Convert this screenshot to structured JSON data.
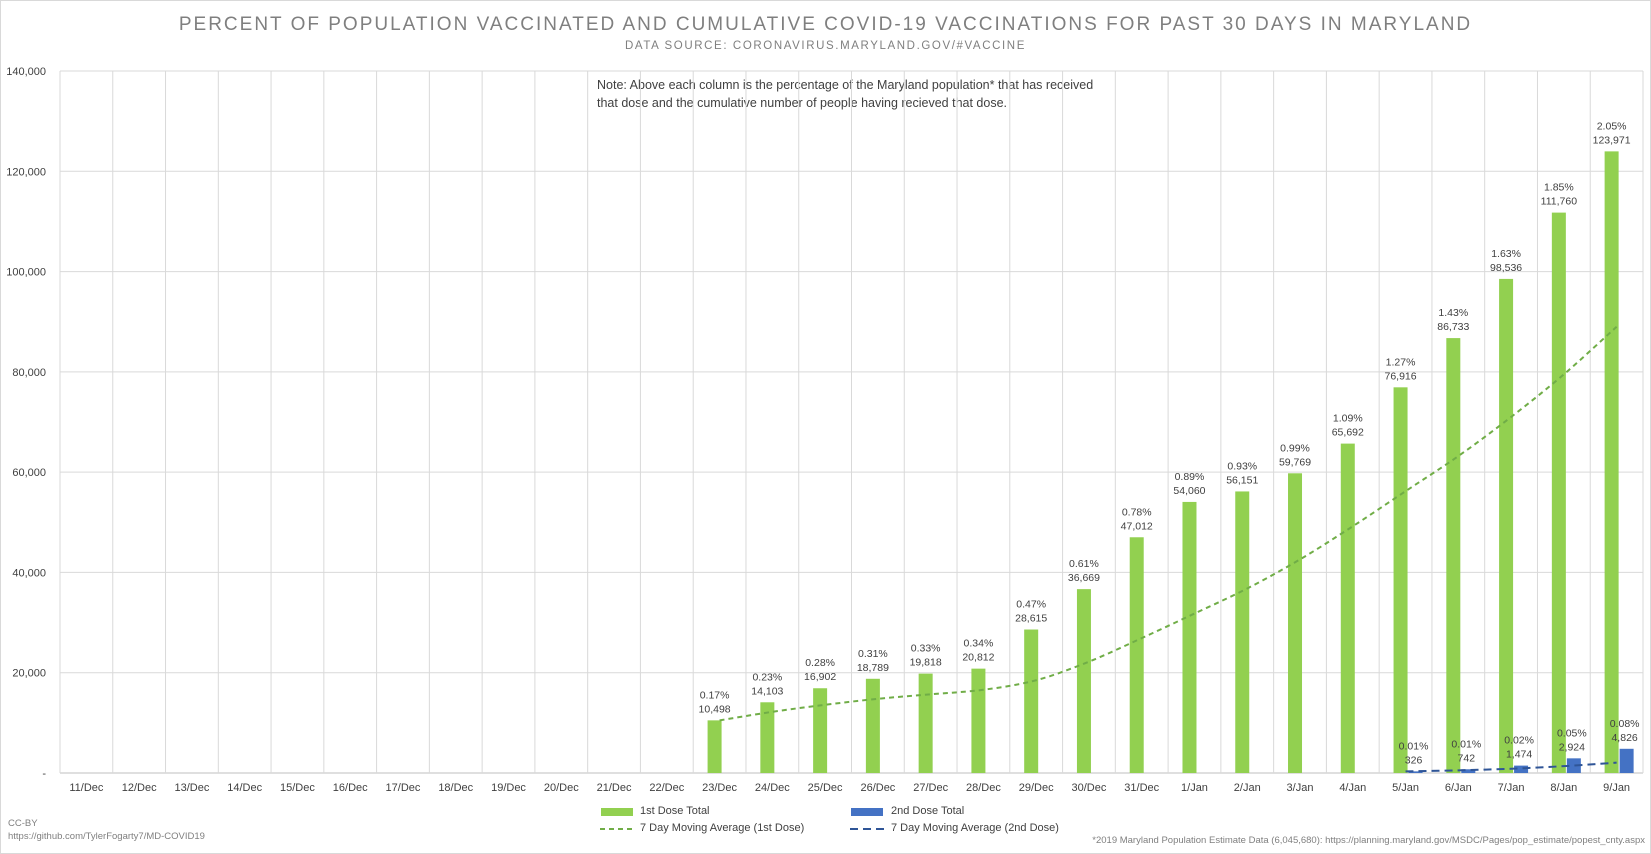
{
  "title": "PERCENT OF POPULATION VACCINATED AND CUMULATIVE COVID-19 VACCINATIONS FOR PAST 30 DAYS IN MARYLAND",
  "subtitle": "DATA SOURCE: CORONAVIRUS.MARYLAND.GOV/#VACCINE",
  "note": "Note: Above each column is the percentage of the Maryland population* that has received that dose and the cumulative number of people having recieved that dose.",
  "footer": {
    "license": "CC-BY",
    "repo": "https://github.com/TylerFogarty7/MD-COVID19",
    "population_source": "*2019 Maryland Population Estimate Data (6,045,680): https://planning.maryland.gov/MSDC/Pages/pop_estimate/popest_cnty.aspx"
  },
  "colors": {
    "dose1": "#92d050",
    "dose2": "#4472c4",
    "grid": "#d9d9d9",
    "text": "#404040"
  },
  "chart_data": {
    "type": "bar",
    "categories": [
      "11/Dec",
      "12/Dec",
      "13/Dec",
      "14/Dec",
      "15/Dec",
      "16/Dec",
      "17/Dec",
      "18/Dec",
      "19/Dec",
      "20/Dec",
      "21/Dec",
      "22/Dec",
      "23/Dec",
      "24/Dec",
      "25/Dec",
      "26/Dec",
      "27/Dec",
      "28/Dec",
      "29/Dec",
      "30/Dec",
      "31/Dec",
      "1/Jan",
      "2/Jan",
      "3/Jan",
      "4/Jan",
      "5/Jan",
      "6/Jan",
      "7/Jan",
      "8/Jan",
      "9/Jan"
    ],
    "ylim": [
      0,
      140000
    ],
    "yticks": [
      0,
      20000,
      40000,
      60000,
      80000,
      100000,
      120000,
      140000
    ],
    "ytick_labels": [
      "-",
      "20,000",
      "40,000",
      "60,000",
      "80,000",
      "100,000",
      "120,000",
      "140,000"
    ],
    "grid": true,
    "legend_position": "bottom",
    "series": [
      {
        "name": "1st Dose Total",
        "kind": "bar",
        "color": "#92d050",
        "values": [
          0,
          0,
          0,
          0,
          0,
          0,
          0,
          0,
          0,
          0,
          0,
          0,
          10498,
          14103,
          16902,
          18789,
          19818,
          20812,
          28615,
          36669,
          47012,
          54060,
          56151,
          59769,
          65692,
          76916,
          86733,
          98536,
          111760,
          123971
        ],
        "value_labels": [
          "",
          "",
          "",
          "",
          "",
          "",
          "",
          "",
          "",
          "",
          "",
          "",
          "10,498",
          "14,103",
          "16,902",
          "18,789",
          "19,818",
          "20,812",
          "28,615",
          "36,669",
          "47,012",
          "54,060",
          "56,151",
          "59,769",
          "65,692",
          "76,916",
          "86,733",
          "98,536",
          "111,760",
          "123,971"
        ],
        "percent_labels": [
          "",
          "",
          "",
          "",
          "",
          "",
          "",
          "",
          "",
          "",
          "",
          "",
          "0.17%",
          "0.23%",
          "0.28%",
          "0.31%",
          "0.33%",
          "0.34%",
          "0.47%",
          "0.61%",
          "0.78%",
          "0.89%",
          "0.93%",
          "0.99%",
          "1.09%",
          "1.27%",
          "1.43%",
          "1.63%",
          "1.85%",
          "2.05%"
        ]
      },
      {
        "name": "2nd Dose Total",
        "kind": "bar",
        "color": "#4472c4",
        "values": [
          0,
          0,
          0,
          0,
          0,
          0,
          0,
          0,
          0,
          0,
          0,
          0,
          0,
          0,
          0,
          0,
          0,
          0,
          0,
          0,
          0,
          0,
          0,
          0,
          0,
          326,
          742,
          1474,
          2924,
          4826
        ],
        "value_labels": [
          "",
          "",
          "",
          "",
          "",
          "",
          "",
          "",
          "",
          "",
          "",
          "",
          "",
          "",
          "",
          "",
          "",
          "",
          "",
          "",
          "",
          "",
          "",
          "",
          "",
          "326",
          "742",
          "1,474",
          "2,924",
          "4,826"
        ],
        "percent_labels": [
          "",
          "",
          "",
          "",
          "",
          "",
          "",
          "",
          "",
          "",
          "",
          "",
          "",
          "",
          "",
          "",
          "",
          "",
          "",
          "",
          "",
          "",
          "",
          "",
          "",
          "0.01%",
          "0.01%",
          "0.02%",
          "0.05%",
          "0.08%"
        ]
      },
      {
        "name": "7 Day Moving Average (1st Dose)",
        "kind": "line",
        "style": "dashed",
        "color": "#70ad47",
        "points": [
          {
            "x": "23/Dec",
            "y": 10500
          },
          {
            "x": "24/Dec",
            "y": 12200
          },
          {
            "x": "25/Dec",
            "y": 13600
          },
          {
            "x": "26/Dec",
            "y": 14800
          },
          {
            "x": "27/Dec",
            "y": 15700
          },
          {
            "x": "28/Dec",
            "y": 16600
          },
          {
            "x": "29/Dec",
            "y": 18500
          },
          {
            "x": "30/Dec",
            "y": 22200
          },
          {
            "x": "31/Dec",
            "y": 26900
          },
          {
            "x": "1/Jan",
            "y": 31800
          },
          {
            "x": "2/Jan",
            "y": 36800
          },
          {
            "x": "3/Jan",
            "y": 42600
          },
          {
            "x": "4/Jan",
            "y": 49200
          },
          {
            "x": "5/Jan",
            "y": 56200
          },
          {
            "x": "6/Jan",
            "y": 63200
          },
          {
            "x": "7/Jan",
            "y": 71000
          },
          {
            "x": "8/Jan",
            "y": 79500
          },
          {
            "x": "9/Jan",
            "y": 89000
          }
        ]
      },
      {
        "name": "7 Day Moving Average (2nd Dose)",
        "kind": "line",
        "style": "dashed",
        "color": "#2f5597",
        "points": [
          {
            "x": "5/Jan",
            "y": 326
          },
          {
            "x": "6/Jan",
            "y": 534
          },
          {
            "x": "7/Jan",
            "y": 847
          },
          {
            "x": "8/Jan",
            "y": 1367
          },
          {
            "x": "9/Jan",
            "y": 2058
          }
        ]
      }
    ]
  }
}
